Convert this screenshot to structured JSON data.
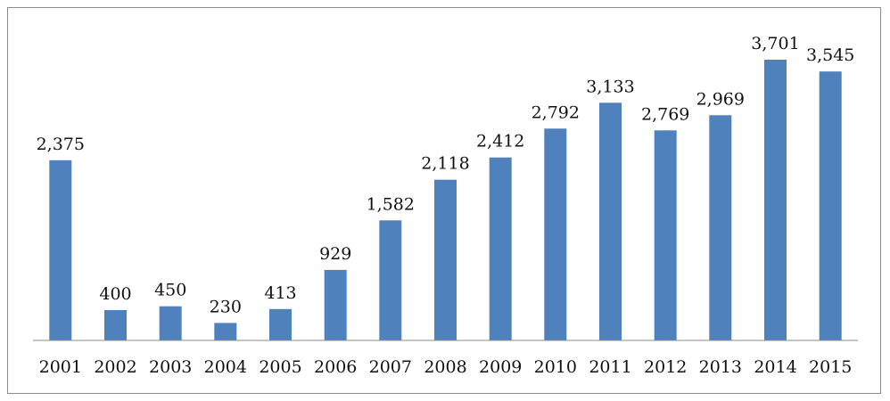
{
  "chart_data": {
    "type": "bar",
    "categories": [
      "2001",
      "2002",
      "2003",
      "2004",
      "2005",
      "2006",
      "2007",
      "2008",
      "2009",
      "2010",
      "2011",
      "2012",
      "2013",
      "2014",
      "2015"
    ],
    "values": [
      2375,
      400,
      450,
      230,
      413,
      929,
      1582,
      2118,
      2412,
      2792,
      3133,
      2769,
      2969,
      3701,
      3545
    ],
    "data_labels": [
      "2,375",
      "400",
      "450",
      "230",
      "413",
      "929",
      "1,582",
      "2,118",
      "2,412",
      "2,792",
      "3,133",
      "2,769",
      "2,969",
      "3,701",
      "3,545"
    ],
    "title": "",
    "xlabel": "",
    "ylabel": "",
    "ylim": [
      0,
      4000
    ],
    "grid": false,
    "legend": "none",
    "bar_color": "#4f81bd",
    "axis_color": "#8c8c8c"
  }
}
